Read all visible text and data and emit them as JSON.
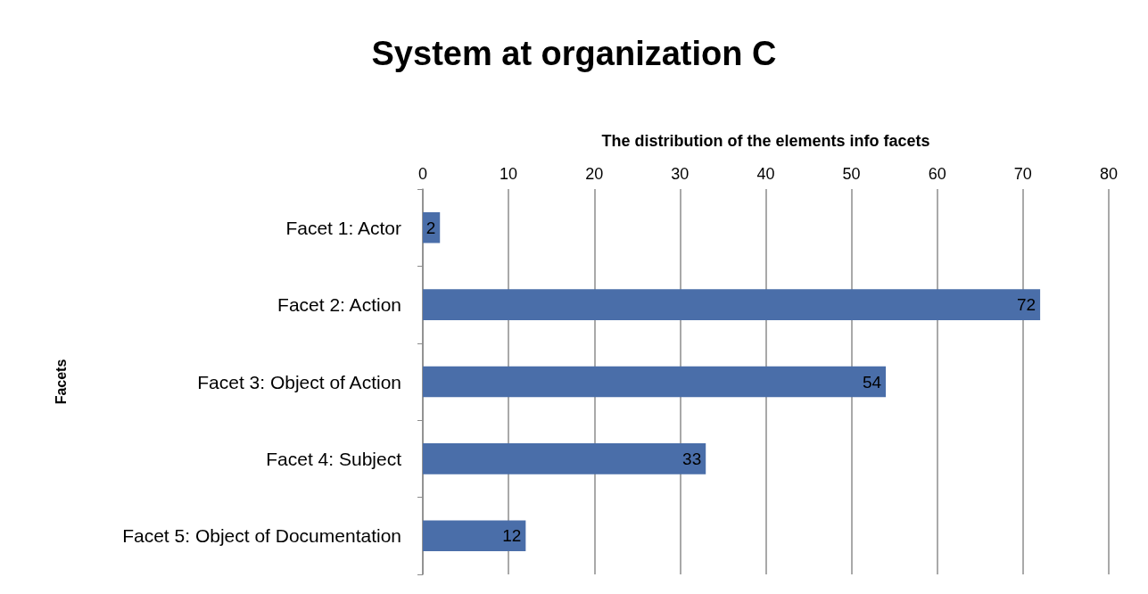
{
  "chart_data": {
    "type": "bar",
    "orientation": "horizontal",
    "title": "System at organization C",
    "xlabel": "The distribution of the elements info facets",
    "ylabel": "Facets",
    "categories": [
      "Facet 1: Actor",
      "Facet 2: Action",
      "Facet 3: Object of Action",
      "Facet 4: Subject",
      "Facet 5: Object of Documentation"
    ],
    "values": [
      2,
      72,
      54,
      33,
      12
    ],
    "color": "#4a6ea9",
    "xlim": [
      0,
      80
    ],
    "xticks": [
      0,
      10,
      20,
      30,
      40,
      50,
      60,
      70,
      80
    ],
    "grid": "x",
    "data_labels": true
  }
}
